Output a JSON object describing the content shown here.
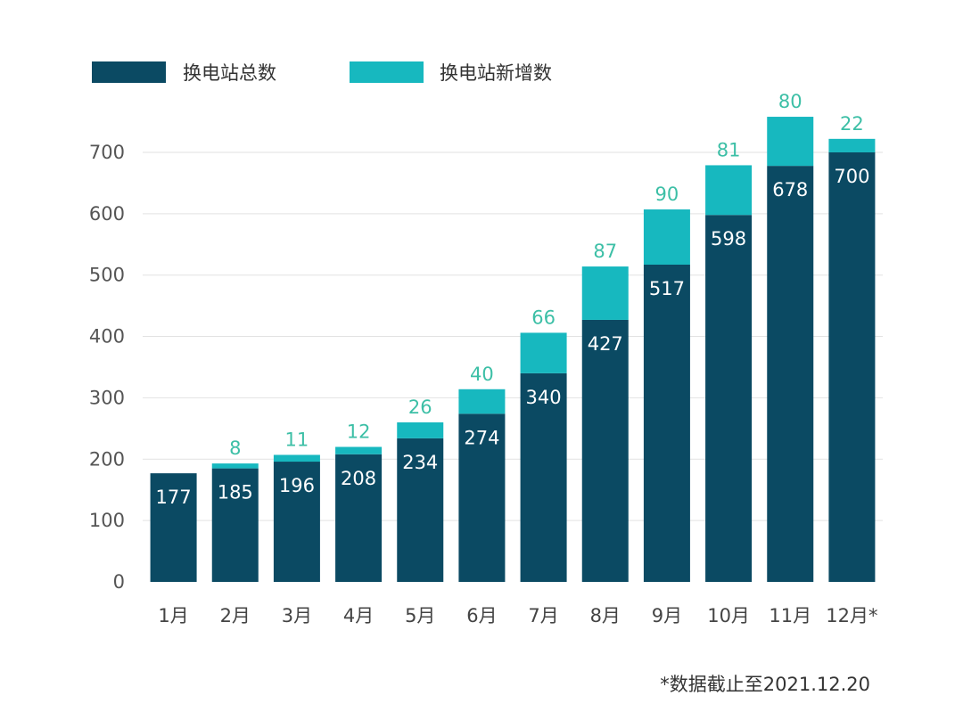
{
  "chart_data": {
    "type": "bar",
    "stacked": true,
    "categories": [
      "1月",
      "2月",
      "3月",
      "4月",
      "5月",
      "6月",
      "7月",
      "8月",
      "9月",
      "10月",
      "11月",
      "12月*"
    ],
    "series": [
      {
        "name": "换电站总数",
        "color": "#0b4a63",
        "values": [
          177,
          185,
          196,
          208,
          234,
          274,
          340,
          427,
          517,
          598,
          678,
          700
        ]
      },
      {
        "name": "换电站新增数",
        "color": "#17b8bf",
        "values": [
          null,
          8,
          11,
          12,
          26,
          40,
          66,
          87,
          90,
          81,
          80,
          22
        ]
      }
    ],
    "ylim": [
      0,
      760
    ],
    "yticks": [
      0,
      100,
      200,
      300,
      400,
      500,
      600,
      700
    ],
    "grid": true,
    "legend_position": "top-left",
    "label_color_added": "#3cbfa6",
    "footnote": "*数据截止至2021.12.20"
  }
}
